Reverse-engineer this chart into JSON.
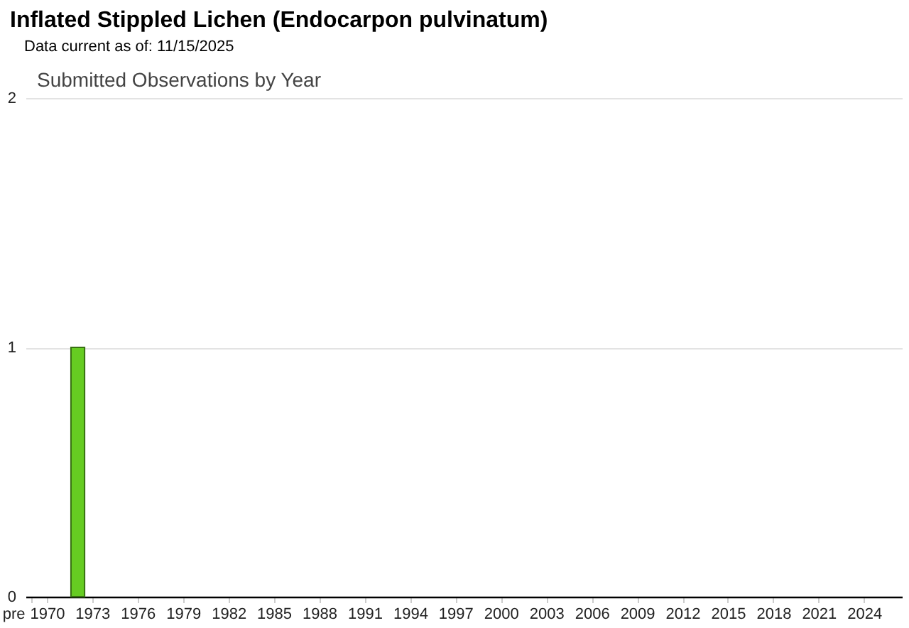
{
  "chart_data": {
    "type": "bar",
    "title": "Inflated Stippled Lichen   (Endocarpon pulvinatum)",
    "subtitle": "Data current as of: 11/15/2025",
    "annotations": [
      "Submitted Observations by Year"
    ],
    "categories": [
      "pre",
      "1970",
      null,
      null,
      "1973",
      null,
      null,
      "1976",
      null,
      null,
      "1979",
      null,
      null,
      "1982",
      null,
      null,
      "1985",
      null,
      null,
      "1988",
      null,
      null,
      "1991",
      null,
      null,
      "1994",
      null,
      null,
      "1997",
      null,
      null,
      "2000",
      null,
      null,
      "2003",
      null,
      null,
      "2006",
      null,
      null,
      "2009",
      null,
      null,
      "2012",
      null,
      null,
      "2015",
      null,
      null,
      "2018",
      null,
      null,
      "2021",
      null,
      null,
      "2024",
      null,
      null
    ],
    "values": [
      0,
      0,
      0,
      1,
      0,
      0,
      0,
      0,
      0,
      0,
      0,
      0,
      0,
      0,
      0,
      0,
      0,
      0,
      0,
      0,
      0,
      0,
      0,
      0,
      0,
      0,
      0,
      0,
      0,
      0,
      0,
      0,
      0,
      0,
      0,
      0,
      0,
      0,
      0,
      0,
      0,
      0,
      0,
      0,
      0,
      0,
      0,
      0,
      0,
      0,
      0,
      0,
      0,
      0,
      0,
      0,
      0,
      0
    ],
    "color": "#66cc22",
    "ylim": [
      0,
      2
    ],
    "yticks": [
      0,
      1,
      2
    ],
    "grid": "y"
  }
}
